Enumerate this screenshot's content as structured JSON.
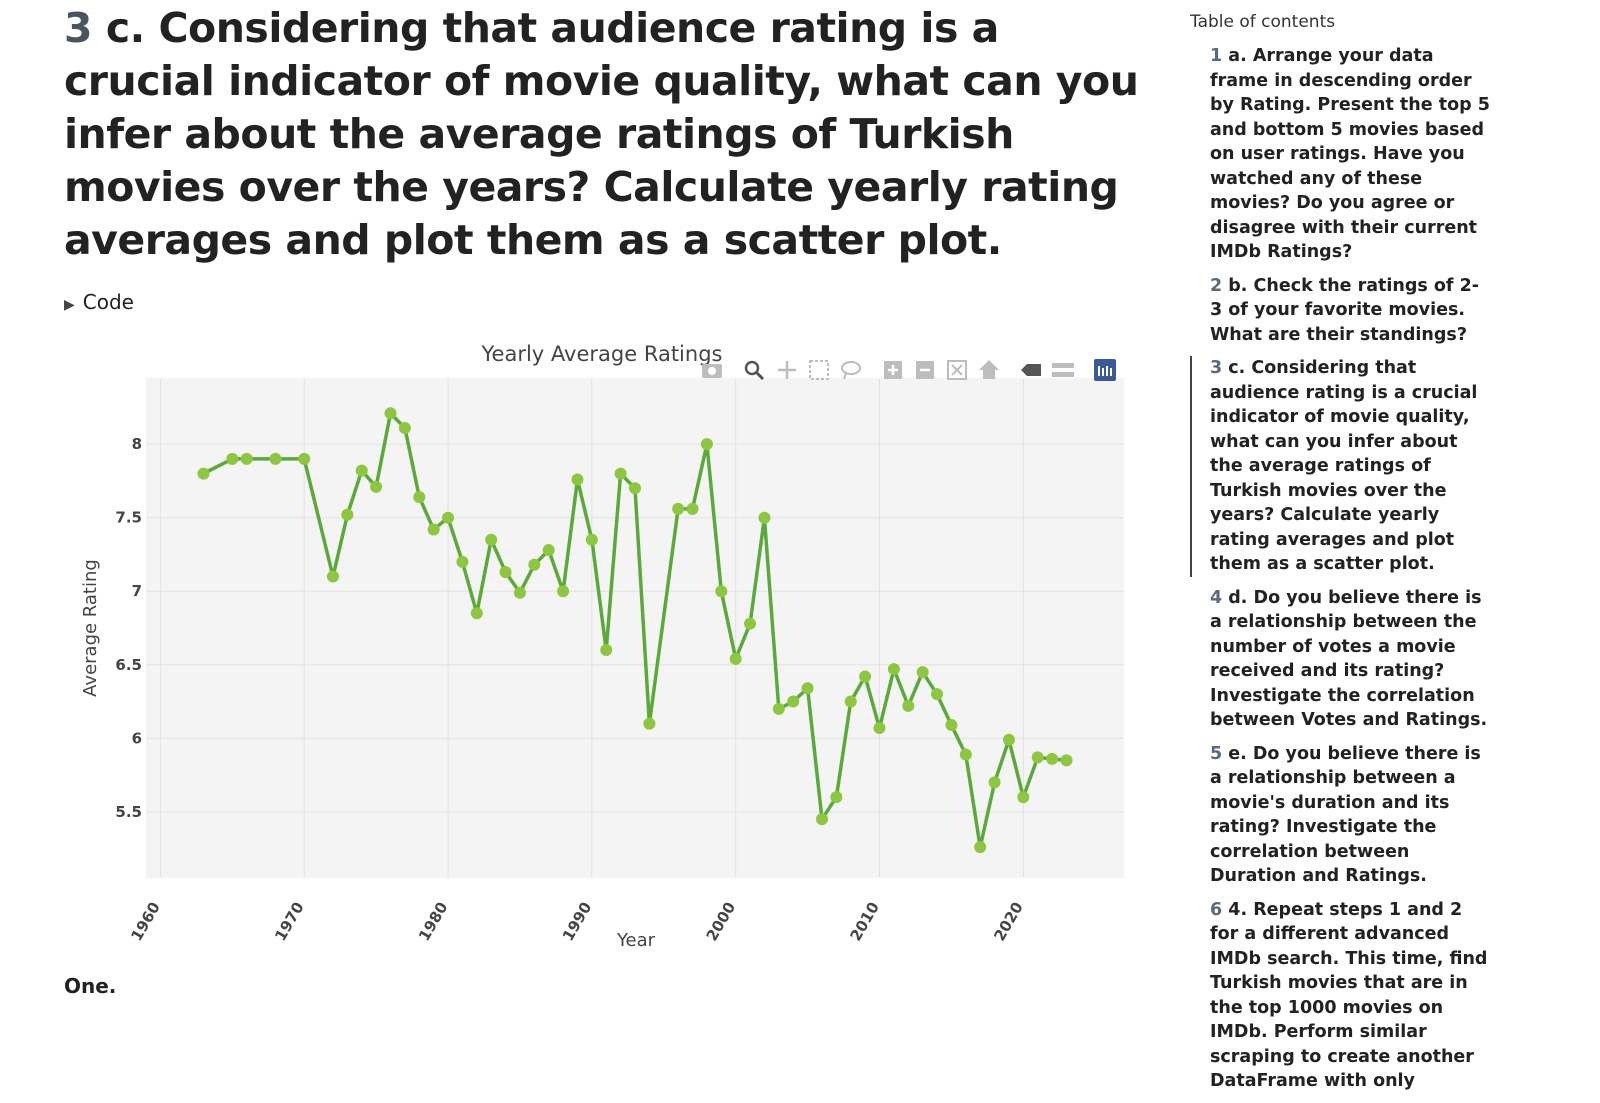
{
  "heading": {
    "number": "3",
    "text": "c. Considering that audience rating is a crucial indicator of movie quality, what can you infer about the average ratings of Turkish movies over the years? Calculate yearly rating averages and plot them as a scatter plot."
  },
  "code_toggle": {
    "label": "Code"
  },
  "toc": {
    "title": "Table of contents",
    "items": [
      {
        "num": "1",
        "text": "a. Arrange your data frame in descending order by Rating. Present the top 5 and bottom 5 movies based on user ratings. Have you watched any of these movies? Do you agree or disagree with their current IMDb Ratings?"
      },
      {
        "num": "2",
        "text": "b. Check the ratings of 2-3 of your favorite movies. What are their standings?"
      },
      {
        "num": "3",
        "text": "c. Considering that audience rating is a crucial indicator of movie quality, what can you infer about the average ratings of Turkish movies over the years? Calculate yearly rating averages and plot them as a scatter plot."
      },
      {
        "num": "4",
        "text": "d. Do you believe there is a relationship between the number of votes a movie received and its rating? Investigate the correlation between Votes and Ratings."
      },
      {
        "num": "5",
        "text": "e. Do you believe there is a relationship between a movie's duration and its rating? Investigate the correlation between Duration and Ratings."
      },
      {
        "num": "6",
        "text": "4. Repeat steps 1 and 2 for a different advanced IMDb search. This time, find Turkish movies that are in the top 1000 movies on IMDb. Perform similar scraping to create another DataFrame with only"
      }
    ]
  },
  "bottom_text": "One.",
  "colors": {
    "line": "#5aaa3a",
    "marker": "#8dc63f",
    "plot_bg": "#f4f4f4",
    "grid": "#e2e2e2",
    "modebar": "#bdbdbd",
    "modebar_active": "#3b5998"
  },
  "modebar_icons": [
    "camera-icon",
    "zoom-icon",
    "pan-icon",
    "box-select-icon",
    "lasso-icon",
    "zoom-in-icon",
    "zoom-out-icon",
    "autoscale-icon",
    "reset-axes-icon",
    "spike-lines-icon",
    "compare-hover-icon",
    "plotly-logo-icon"
  ],
  "chart_data": {
    "type": "line",
    "title": "Yearly Average Ratings",
    "xlabel": "Year",
    "ylabel": "Average Rating",
    "xlim": [
      1959,
      2027
    ],
    "ylim": [
      5.05,
      8.45
    ],
    "xticks": [
      1960,
      1970,
      1980,
      1990,
      2000,
      2010,
      2020
    ],
    "yticks": [
      5.5,
      6,
      6.5,
      7,
      7.5,
      8
    ],
    "ytick_labels": [
      "5.5",
      "6",
      "6.5",
      "7",
      "7.5",
      "8"
    ],
    "grid": true,
    "markers": true,
    "series": [
      {
        "x": [
          1963,
          1965,
          1966,
          1968,
          1970,
          1972,
          1973,
          1974,
          1975,
          1976,
          1977,
          1978,
          1979,
          1980,
          1981,
          1982,
          1983,
          1984,
          1985,
          1986,
          1987,
          1988,
          1989,
          1990,
          1991,
          1992,
          1993,
          1994,
          1996,
          1997,
          1998,
          1999,
          2000,
          2001,
          2002,
          2003,
          2004,
          2005,
          2006,
          2007,
          2008,
          2009,
          2010,
          2011,
          2012,
          2013,
          2014,
          2015,
          2016,
          2017,
          2018,
          2019,
          2020,
          2021,
          2022,
          2023
        ],
        "y": [
          7.8,
          7.9,
          7.9,
          7.9,
          7.9,
          7.1,
          7.52,
          7.82,
          7.71,
          8.21,
          8.11,
          7.64,
          7.42,
          7.5,
          7.2,
          6.85,
          7.35,
          7.13,
          6.99,
          7.18,
          7.28,
          7.0,
          7.76,
          7.35,
          6.6,
          7.8,
          7.7,
          6.1,
          7.56,
          7.56,
          8.0,
          7.0,
          6.54,
          6.78,
          7.5,
          6.2,
          6.25,
          6.34,
          5.45,
          5.6,
          6.25,
          6.42,
          6.07,
          6.47,
          6.22,
          6.45,
          6.3,
          6.09,
          5.89,
          5.26,
          5.7,
          5.99,
          5.6,
          5.87,
          5.86,
          5.85
        ]
      }
    ]
  }
}
